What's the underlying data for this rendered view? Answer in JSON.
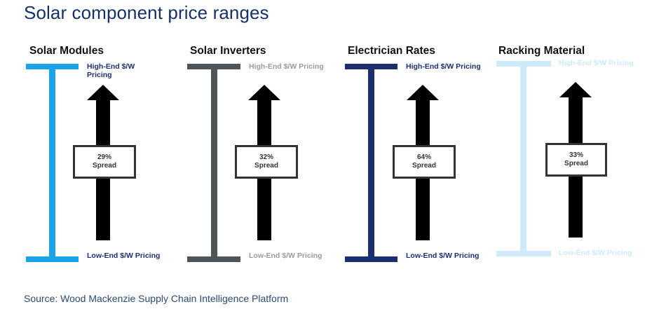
{
  "title": "Solar component price ranges",
  "source": "Source: Wood Mackenzie Supply Chain Intelligence Platform",
  "colors": {
    "title": "#17306a",
    "solar_modules": "#1aa3e8",
    "solar_inverters": "#4f5458",
    "electrician_rates": "#1b2f6e",
    "racking_material": "#cdeafb",
    "arrow": "#000000"
  },
  "components": [
    {
      "name": "Solar Modules",
      "high_label": "High-End $/W Pricing",
      "low_label": "Low-End $/W Pricing",
      "spread_value": "29%",
      "spread_label": "Spread",
      "color": "#1aa3e8",
      "label_color": "#1b2f6e"
    },
    {
      "name": "Solar Inverters",
      "high_label": "High-End $/W Pricing",
      "low_label": "Low-End $/W Pricing",
      "spread_value": "32%",
      "spread_label": "Spread",
      "color": "#4f5458",
      "label_color": "#9a9a9a"
    },
    {
      "name": "Electrician Rates",
      "high_label": "High-End $/W Pricing",
      "low_label": "Low-End $/W Pricing",
      "spread_value": "64%",
      "spread_label": "Spread",
      "color": "#1b2f6e",
      "label_color": "#1b2f6e"
    },
    {
      "name": "Racking Material",
      "high_label": "High-End $/W Pricing",
      "low_label": "Low-End $/W Pricing",
      "spread_value": "33%",
      "spread_label": "Spread",
      "color": "#cdeafb",
      "label_color": "#cdeafb"
    }
  ]
}
